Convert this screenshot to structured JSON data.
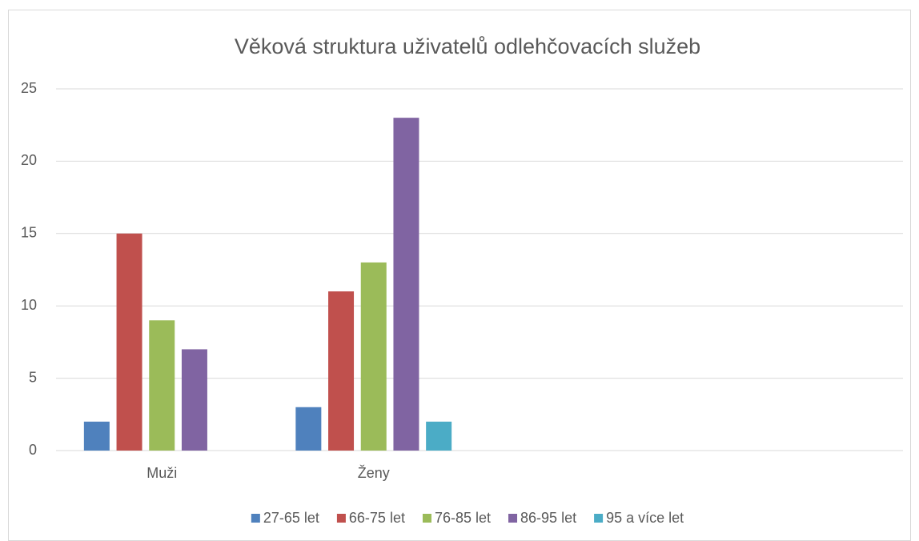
{
  "chart_data": {
    "type": "bar",
    "title": "Věková struktura uživatelů odlehčovacích služeb",
    "categories": [
      "Muži",
      "Ženy",
      null,
      null
    ],
    "series": [
      {
        "name": "27-65 let",
        "color": "#4f81bd",
        "values": [
          2,
          3,
          null,
          null
        ]
      },
      {
        "name": "66-75 let",
        "color": "#c0504d",
        "values": [
          15,
          11,
          null,
          null
        ]
      },
      {
        "name": "76-85 let",
        "color": "#9bbb59",
        "values": [
          9,
          13,
          null,
          null
        ]
      },
      {
        "name": "86-95 let",
        "color": "#8064a2",
        "values": [
          7,
          23,
          null,
          null
        ]
      },
      {
        "name": "95 a více let",
        "color": "#4bacc6",
        "values": [
          null,
          2,
          null,
          null
        ]
      }
    ],
    "ylim": [
      0,
      25
    ],
    "yticks": [
      0,
      5,
      10,
      15,
      20,
      25
    ],
    "grid": true,
    "legend": "bottom"
  }
}
